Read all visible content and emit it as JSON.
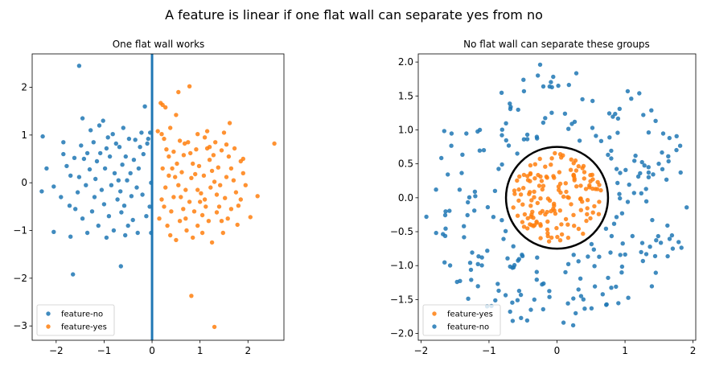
{
  "figure": {
    "suptitle": "A feature is linear if one flat wall can separate yes from no"
  },
  "colors": {
    "blue": "#1f77b4",
    "orange": "#ff7f0e",
    "wall": "#1f77b4",
    "circle": "#000000"
  },
  "chart_data": [
    {
      "type": "scatter",
      "title": "One flat wall works",
      "xlabel": "",
      "ylabel": "",
      "xlim": [
        -2.5,
        2.75
      ],
      "ylim": [
        -3.3,
        2.7
      ],
      "xticks": [
        -2,
        -1,
        0,
        1,
        2
      ],
      "yticks": [
        -3,
        -2,
        -1,
        0,
        1,
        2
      ],
      "legend": {
        "placement": "lower-left",
        "entries": [
          "feature-no",
          "feature-yes"
        ]
      },
      "annotations": [
        {
          "type": "vertical-line",
          "x": 0,
          "color": "#1f77b4"
        }
      ],
      "series": [
        {
          "name": "feature-no",
          "color": "#1f77b4",
          "points": [
            [
              -1.52,
              2.45
            ],
            [
              -2.28,
              0.97
            ],
            [
              -2.2,
              0.3
            ],
            [
              -2.3,
              -0.18
            ],
            [
              -2.05,
              -0.08
            ],
            [
              -2.05,
              -1.03
            ],
            [
              -1.85,
              0.6
            ],
            [
              -1.78,
              0.35
            ],
            [
              -1.72,
              -0.48
            ],
            [
              -1.7,
              -1.13
            ],
            [
              -1.65,
              -1.92
            ],
            [
              -1.62,
              0.52
            ],
            [
              -1.55,
              -0.2
            ],
            [
              -1.52,
              0.12
            ],
            [
              -1.48,
              0.78
            ],
            [
              -1.45,
              1.35
            ],
            [
              -1.45,
              -0.75
            ],
            [
              -1.42,
              0.5
            ],
            [
              -1.38,
              -0.05
            ],
            [
              -1.35,
              -1.05
            ],
            [
              -1.3,
              0.28
            ],
            [
              -1.28,
              1.1
            ],
            [
              -1.25,
              -0.6
            ],
            [
              -1.22,
              0.85
            ],
            [
              -1.2,
              -0.3
            ],
            [
              -1.18,
              0.08
            ],
            [
              -1.15,
              0.45
            ],
            [
              -1.12,
              -0.9
            ],
            [
              -1.1,
              1.2
            ],
            [
              -1.08,
              0.62
            ],
            [
              -1.05,
              -0.15
            ],
            [
              -1.02,
              1.3
            ],
            [
              -1.0,
              -0.45
            ],
            [
              -0.98,
              0.3
            ],
            [
              -0.95,
              -1.15
            ],
            [
              -0.92,
              0.95
            ],
            [
              -0.9,
              -0.7
            ],
            [
              -0.88,
              0.55
            ],
            [
              -0.85,
              -0.05
            ],
            [
              -0.82,
              1.02
            ],
            [
              -0.8,
              -1.0
            ],
            [
              -0.78,
              0.2
            ],
            [
              -0.75,
              0.82
            ],
            [
              -0.72,
              -0.35
            ],
            [
              -0.7,
              0.05
            ],
            [
              -0.68,
              0.75
            ],
            [
              -0.66,
              -0.18
            ],
            [
              -0.64,
              -0.62
            ],
            [
              -0.62,
              0.38
            ],
            [
              -0.6,
              1.15
            ],
            [
              -0.58,
              -0.48
            ],
            [
              -0.56,
              -1.1
            ],
            [
              -0.55,
              0.55
            ],
            [
              -0.52,
              0.05
            ],
            [
              -0.5,
              -0.9
            ],
            [
              -0.48,
              0.92
            ],
            [
              -0.45,
              0.2
            ],
            [
              -0.43,
              -0.28
            ],
            [
              -0.4,
              -0.78
            ],
            [
              -0.38,
              0.48
            ],
            [
              -0.35,
              0.9
            ],
            [
              -0.32,
              -0.1
            ],
            [
              -0.3,
              -1.05
            ],
            [
              -0.28,
              0.3
            ],
            [
              -0.25,
              0.75
            ],
            [
              -0.22,
              1.05
            ],
            [
              -0.2,
              -0.25
            ],
            [
              -0.18,
              0.6
            ],
            [
              -0.15,
              1.6
            ],
            [
              -0.12,
              -0.7
            ],
            [
              -0.1,
              0.82
            ],
            [
              -0.08,
              0.92
            ],
            [
              -0.05,
              -0.5
            ],
            [
              -0.04,
              1.05
            ],
            [
              -0.02,
              -1.05
            ],
            [
              -0.02,
              0.0
            ],
            [
              -0.65,
              -1.75
            ],
            [
              -1.85,
              0.85
            ],
            [
              -1.6,
              -0.55
            ],
            [
              -0.95,
              0.72
            ],
            [
              -1.35,
              0.62
            ],
            [
              -1.9,
              -0.3
            ],
            [
              -1.7,
              0.15
            ]
          ]
        },
        {
          "name": "feature-yes",
          "color": "#ff7f0e",
          "points": [
            [
              0.78,
              2.02
            ],
            [
              0.55,
              1.9
            ],
            [
              0.18,
              1.67
            ],
            [
              0.22,
              1.63
            ],
            [
              0.28,
              1.58
            ],
            [
              0.5,
              1.42
            ],
            [
              0.38,
              1.15
            ],
            [
              0.12,
              1.08
            ],
            [
              0.2,
              1.02
            ],
            [
              0.25,
              0.92
            ],
            [
              0.3,
              0.7
            ],
            [
              0.35,
              0.55
            ],
            [
              0.42,
              0.3
            ],
            [
              0.48,
              0.12
            ],
            [
              0.55,
              -0.05
            ],
            [
              0.6,
              -0.3
            ],
            [
              0.65,
              -0.55
            ],
            [
              0.7,
              -0.75
            ],
            [
              0.75,
              0.85
            ],
            [
              0.8,
              0.62
            ],
            [
              0.85,
              0.4
            ],
            [
              0.9,
              0.18
            ],
            [
              0.95,
              -0.15
            ],
            [
              1.0,
              -0.4
            ],
            [
              1.05,
              -0.68
            ],
            [
              1.1,
              0.95
            ],
            [
              1.15,
              0.72
            ],
            [
              1.2,
              0.48
            ],
            [
              1.25,
              0.25
            ],
            [
              1.3,
              0.02
            ],
            [
              1.35,
              -0.25
            ],
            [
              1.4,
              -0.5
            ],
            [
              1.45,
              -0.8
            ],
            [
              1.5,
              1.05
            ],
            [
              1.55,
              0.8
            ],
            [
              1.6,
              0.55
            ],
            [
              1.62,
              1.25
            ],
            [
              1.65,
              0.3
            ],
            [
              1.7,
              0.05
            ],
            [
              1.75,
              -0.2
            ],
            [
              1.8,
              -0.48
            ],
            [
              1.85,
              0.45
            ],
            [
              1.9,
              0.2
            ],
            [
              1.95,
              -0.05
            ],
            [
              2.05,
              -0.72
            ],
            [
              2.2,
              -0.28
            ],
            [
              2.55,
              0.82
            ],
            [
              1.3,
              -3.02
            ],
            [
              0.82,
              -2.37
            ],
            [
              0.15,
              -0.75
            ],
            [
              0.2,
              -0.35
            ],
            [
              0.22,
              0.3
            ],
            [
              0.28,
              -0.1
            ],
            [
              0.32,
              -0.9
            ],
            [
              0.38,
              -1.1
            ],
            [
              0.4,
              -0.6
            ],
            [
              0.45,
              0.65
            ],
            [
              0.5,
              -1.2
            ],
            [
              0.52,
              0.4
            ],
            [
              0.58,
              -0.8
            ],
            [
              0.62,
              0.22
            ],
            [
              0.66,
              0.58
            ],
            [
              0.7,
              -0.15
            ],
            [
              0.72,
              -1.0
            ],
            [
              0.78,
              -0.4
            ],
            [
              0.82,
              0.1
            ],
            [
              0.85,
              -1.15
            ],
            [
              0.88,
              -0.6
            ],
            [
              0.92,
              0.7
            ],
            [
              0.95,
              -0.9
            ],
            [
              0.98,
              0.35
            ],
            [
              1.02,
              -0.22
            ],
            [
              1.05,
              -1.05
            ],
            [
              1.08,
              0.15
            ],
            [
              1.12,
              -0.5
            ],
            [
              1.15,
              1.08
            ],
            [
              1.18,
              -0.8
            ],
            [
              1.22,
              -0.1
            ],
            [
              1.25,
              -1.25
            ],
            [
              1.28,
              0.58
            ],
            [
              1.32,
              0.85
            ],
            [
              1.35,
              -0.62
            ],
            [
              1.38,
              0.32
            ],
            [
              1.42,
              -0.05
            ],
            [
              1.45,
              0.68
            ],
            [
              1.48,
              -1.05
            ],
            [
              1.52,
              -0.32
            ],
            [
              1.55,
              0.12
            ],
            [
              1.58,
              -0.75
            ],
            [
              1.65,
              -0.55
            ],
            [
              1.72,
              0.72
            ],
            [
              1.78,
              -0.88
            ],
            [
              1.85,
              -0.35
            ],
            [
              1.9,
              0.5
            ],
            [
              0.35,
              0.15
            ],
            [
              0.58,
              0.88
            ],
            [
              0.68,
              0.82
            ],
            [
              0.95,
              1.02
            ],
            [
              1.1,
              -0.35
            ],
            [
              1.2,
              0.75
            ],
            [
              0.25,
              -0.5
            ],
            [
              0.45,
              -0.3
            ]
          ]
        }
      ]
    },
    {
      "type": "scatter",
      "title": "No flat wall can separate these groups",
      "xlabel": "",
      "ylabel": "",
      "xlim": [
        -2.04,
        2.04
      ],
      "ylim": [
        -2.1,
        2.12
      ],
      "xticks": [
        -2,
        -1,
        0,
        1,
        2
      ],
      "yticks": [
        -2.0,
        -1.5,
        -1.0,
        -0.5,
        0.0,
        0.5,
        1.0,
        1.5,
        2.0
      ],
      "legend": {
        "placement": "lower-left",
        "entries": [
          "feature-yes",
          "feature-no"
        ]
      },
      "annotations": [
        {
          "type": "circle",
          "cx": 0,
          "cy": 0,
          "r": 0.75,
          "color": "#000000"
        }
      ],
      "series": [
        {
          "name": "feature-yes",
          "color": "#ff7f0e",
          "inner_ring": {
            "count": 150,
            "max_radius": 0.66,
            "seed": 11
          }
        },
        {
          "name": "feature-no",
          "color": "#1f77b4",
          "outer_ring": {
            "count": 240,
            "min_radius": 0.85,
            "max_radius": 1.98,
            "seed": 23
          }
        }
      ]
    }
  ]
}
